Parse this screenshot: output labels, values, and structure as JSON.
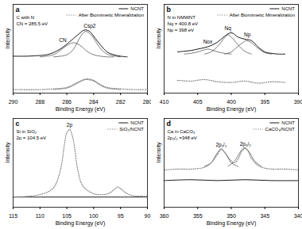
{
  "chart_data": [
    {
      "type": "line",
      "panel": "a",
      "annotations": [
        "C with N",
        "CN = 285.5 eV"
      ],
      "x_label": "Binding Energy (eV)",
      "y_label": "Intensity",
      "xlim": [
        290,
        280
      ],
      "xticks": [
        290,
        288,
        286,
        284,
        282,
        280
      ],
      "ylim": [
        0,
        125
      ],
      "tick_labels": "x",
      "legend": "top-right",
      "series": [
        {
          "name": "NCNT",
          "color": "#000000",
          "line_style": "solid",
          "x": [
            290,
            289,
            288,
            287.5,
            287,
            286.5,
            286,
            285.5,
            285,
            284.8,
            284.6,
            284.4,
            284.2,
            284,
            283.5,
            283,
            282.5,
            282,
            281.5
          ],
          "values": [
            52,
            52,
            53,
            54,
            57,
            62,
            69,
            77,
            85,
            88,
            89,
            88,
            85,
            80,
            68,
            58,
            54,
            52,
            51
          ]
        },
        {
          "name": "After Biomimetic Mineralization",
          "color": "#808080",
          "line_style": "dotted",
          "x": [
            290,
            288,
            287,
            286,
            285.5,
            285,
            284.5,
            284,
            283.5,
            283,
            282,
            281,
            280
          ],
          "values": [
            5,
            5,
            6,
            8,
            12,
            17,
            20,
            18,
            12,
            8,
            6,
            5,
            5
          ]
        }
      ],
      "fit_peaks": [
        {
          "color": "#444444",
          "x": [
            288,
            287,
            286.5,
            286,
            285.5,
            285,
            284.5,
            284,
            283,
            282.5
          ],
          "values": [
            51,
            54,
            60,
            67,
            71,
            67,
            59,
            54,
            51,
            51
          ]
        },
        {
          "color": "#444444",
          "x": [
            287,
            286,
            285.5,
            285,
            284.6,
            284.2,
            284,
            283.5,
            283,
            282
          ],
          "values": [
            51,
            54,
            62,
            79,
            87,
            82,
            77,
            63,
            55,
            51
          ]
        },
        {
          "color": "#666666",
          "x": [
            287,
            286,
            285.5,
            285,
            284.6,
            284,
            283.5,
            283,
            282
          ],
          "values": [
            5,
            7,
            11,
            16,
            19,
            17,
            11,
            7,
            5
          ]
        }
      ],
      "peak_labels": [
        {
          "label": "CN",
          "x": 286.3
        },
        {
          "label": "Csp2",
          "x": 284.3
        }
      ]
    },
    {
      "type": "line",
      "panel": "b",
      "annotations": [
        "N in NMWNT",
        "Nq = 400.8 eV",
        "Np = 398 eV"
      ],
      "x_label": "Binding Energy (eV)",
      "y_label": "Intensity",
      "xlim": [
        410,
        390
      ],
      "xticks": [
        410,
        405,
        400,
        395,
        390
      ],
      "ylim": [
        0,
        125
      ],
      "tick_labels": "x",
      "legend": "top-right",
      "series": [
        {
          "name": "NCNT",
          "color": "#000000",
          "line_style": "solid",
          "x": [
            408,
            407,
            406,
            405,
            404,
            403,
            402,
            401,
            400,
            399,
            398,
            397,
            396,
            395,
            394,
            393,
            392
          ],
          "values": [
            58,
            59,
            60,
            62,
            64,
            67,
            72,
            80,
            85,
            79,
            76,
            74,
            65,
            58,
            56,
            55,
            55
          ]
        },
        {
          "name": "After Biomimetic Mineralization",
          "color": "#808080",
          "line_style": "dotted",
          "x": [
            408,
            406,
            404,
            402,
            400,
            398,
            396,
            394,
            392
          ],
          "values": [
            18,
            17,
            19,
            16,
            15,
            17,
            14,
            16,
            15
          ]
        }
      ],
      "fit_peaks": [
        {
          "color": "#444444",
          "x": [
            407,
            406,
            405,
            404,
            403.5,
            403,
            402,
            401,
            400
          ],
          "values": [
            55,
            56,
            58,
            61,
            62,
            61,
            58,
            56,
            55
          ]
        },
        {
          "color": "#444444",
          "x": [
            404,
            403,
            402,
            401,
            400.5,
            400,
            399,
            398,
            397
          ],
          "values": [
            55,
            58,
            66,
            78,
            82,
            79,
            68,
            59,
            55
          ]
        },
        {
          "color": "#444444",
          "x": [
            401,
            400,
            399,
            398,
            397.8,
            397,
            396,
            395,
            394
          ],
          "values": [
            55,
            58,
            66,
            73,
            74,
            71,
            63,
            57,
            55
          ]
        }
      ],
      "peak_labels": [
        {
          "label": "Nox",
          "x": 403.5
        },
        {
          "label": "Nq",
          "x": 400.5
        },
        {
          "label": "Np",
          "x": 397.6
        }
      ]
    },
    {
      "type": "line",
      "panel": "c",
      "annotations": [
        "Si in SiO₂",
        "2p = 104.5 eV"
      ],
      "x_label": "Binding Energy (eV)",
      "y_label": "Intensity",
      "xlim": [
        115,
        90
      ],
      "xticks": [
        115,
        110,
        105,
        100,
        95,
        90
      ],
      "ylim": [
        0,
        105
      ],
      "tick_labels": "x",
      "legend": "top-right",
      "series": [
        {
          "name": "NCNT",
          "color": "#000000",
          "line_style": "solid",
          "x": [
            115,
            110,
            105,
            100,
            95,
            90
          ],
          "values": [
            12,
            12,
            12,
            12,
            12,
            12
          ]
        },
        {
          "name": "SiO₂/NCNT",
          "color": "#808080",
          "line_style": "dotted",
          "x": [
            115,
            112,
            110,
            108,
            107,
            106,
            105.5,
            105,
            104.5,
            104,
            103.5,
            103,
            102,
            100,
            98,
            97,
            96,
            95.5,
            95,
            94,
            93,
            91,
            90
          ],
          "values": [
            12,
            13,
            15,
            20,
            28,
            50,
            72,
            88,
            92,
            85,
            68,
            45,
            25,
            16,
            15,
            17,
            22,
            24,
            22,
            17,
            14,
            13,
            13
          ]
        }
      ],
      "fit_peaks": [],
      "peak_labels": [
        {
          "label": "2p",
          "x": 104.5
        }
      ]
    },
    {
      "type": "line",
      "panel": "d",
      "annotations": [
        "Ca in CaCO₃",
        "2p₃/₂ =348 eV"
      ],
      "x_label": "Binding Energy (eV)",
      "y_label": "Intensity",
      "xlim": [
        360,
        340
      ],
      "xticks": [
        360,
        355,
        350,
        345,
        340
      ],
      "ylim": [
        0,
        100
      ],
      "tick_labels": "x",
      "legend": "top-right",
      "series": [
        {
          "name": "NCNT",
          "color": "#000000",
          "line_style": "solid",
          "x": [
            360,
            356,
            352,
            348,
            344,
            340
          ],
          "values": [
            30,
            31,
            30,
            31,
            30,
            30
          ]
        },
        {
          "name": "CaCO₃/NCNT",
          "color": "#808080",
          "line_style": "dotted",
          "x": [
            360,
            358,
            356,
            354,
            353,
            352,
            351.5,
            351,
            350,
            349.5,
            349,
            348.5,
            348,
            347.5,
            347,
            346,
            345,
            344,
            342,
            340
          ],
          "values": [
            42,
            43,
            43,
            45,
            50,
            60,
            65,
            62,
            52,
            50,
            54,
            62,
            66,
            63,
            55,
            47,
            44,
            43,
            43,
            42
          ]
        }
      ],
      "fit_peaks": [
        {
          "color": "#444444",
          "x": [
            354,
            353,
            352.5,
            352,
            351.5,
            351,
            350.5,
            350,
            349
          ],
          "values": [
            46,
            50,
            56,
            62,
            66,
            62,
            56,
            50,
            46
          ]
        },
        {
          "color": "#444444",
          "x": [
            350.5,
            349.5,
            349,
            348.5,
            348,
            347.5,
            347,
            346.5,
            345.5
          ],
          "values": [
            46,
            52,
            58,
            64,
            67,
            64,
            58,
            52,
            46
          ]
        }
      ],
      "peak_labels": [
        {
          "label": "2p₁/₂",
          "x": 351.5
        },
        {
          "label": "2p₃/₂",
          "x": 347.9
        }
      ]
    }
  ]
}
